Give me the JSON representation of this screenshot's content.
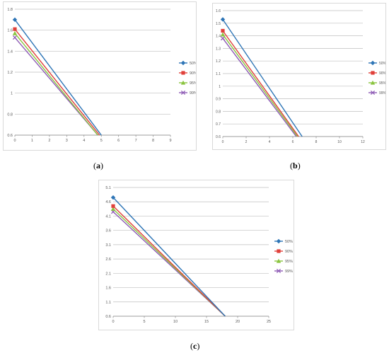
{
  "chart_data": [
    {
      "id": "a",
      "type": "line",
      "title": "",
      "xlabel": "",
      "ylabel": "",
      "xlim": [
        0,
        9
      ],
      "ylim": [
        0.6,
        1.8
      ],
      "x_ticks": [
        0,
        1,
        2,
        3,
        4,
        5,
        6,
        7,
        8,
        9
      ],
      "y_ticks": [
        0.6,
        0.8,
        1,
        1.2,
        1.4,
        1.6,
        1.8
      ],
      "grid": "horizontal",
      "legend": "right",
      "series": [
        {
          "name": "50%",
          "color": "#2e75b6",
          "marker": "diamond",
          "x": [
            0,
            5
          ],
          "y": [
            1.7,
            0.6
          ]
        },
        {
          "name": "90%",
          "color": "#e0403a",
          "marker": "square",
          "x": [
            0,
            4.9
          ],
          "y": [
            1.61,
            0.6
          ]
        },
        {
          "name": "95%",
          "color": "#8ac43f",
          "marker": "triangle",
          "x": [
            0,
            4.8
          ],
          "y": [
            1.57,
            0.6
          ]
        },
        {
          "name": "99%",
          "color": "#8e5bb5",
          "marker": "cross",
          "x": [
            0,
            4.8
          ],
          "y": [
            1.53,
            0.6
          ]
        }
      ]
    },
    {
      "id": "b",
      "type": "line",
      "title": "",
      "xlabel": "",
      "ylabel": "",
      "xlim": [
        0,
        12
      ],
      "ylim": [
        0.6,
        1.6
      ],
      "x_ticks": [
        0,
        2,
        4,
        6,
        8,
        10,
        12
      ],
      "y_ticks": [
        0.6,
        0.7,
        0.8,
        0.9,
        1,
        1.1,
        1.2,
        1.3,
        1.4,
        1.5,
        1.6
      ],
      "grid": "horizontal",
      "legend": "right",
      "series": [
        {
          "name": "50%",
          "color": "#2e75b6",
          "marker": "diamond",
          "x": [
            0,
            6.8
          ],
          "y": [
            1.53,
            0.6
          ]
        },
        {
          "name": "90%",
          "color": "#e0403a",
          "marker": "square",
          "x": [
            0,
            6.5
          ],
          "y": [
            1.44,
            0.6
          ]
        },
        {
          "name": "95%",
          "color": "#8ac43f",
          "marker": "triangle",
          "x": [
            0,
            6.4
          ],
          "y": [
            1.41,
            0.6
          ]
        },
        {
          "name": "99%",
          "color": "#8e5bb5",
          "marker": "cross",
          "x": [
            0,
            6.3
          ],
          "y": [
            1.38,
            0.6
          ]
        }
      ]
    },
    {
      "id": "c",
      "type": "line",
      "title": "",
      "xlabel": "",
      "ylabel": "",
      "xlim": [
        0,
        25
      ],
      "ylim": [
        0.6,
        5.1
      ],
      "x_ticks": [
        0,
        5,
        10,
        15,
        20,
        25
      ],
      "y_ticks": [
        0.6,
        1.1,
        1.6,
        2.1,
        2.6,
        3.1,
        3.6,
        4.1,
        4.6,
        5.1
      ],
      "grid": "horizontal",
      "legend": "right",
      "series": [
        {
          "name": "50%",
          "color": "#2e75b6",
          "marker": "diamond",
          "x": [
            0,
            18
          ],
          "y": [
            4.75,
            0.6
          ]
        },
        {
          "name": "90%",
          "color": "#e0403a",
          "marker": "square",
          "x": [
            0,
            18
          ],
          "y": [
            4.45,
            0.6
          ]
        },
        {
          "name": "95%",
          "color": "#8ac43f",
          "marker": "triangle",
          "x": [
            0,
            18
          ],
          "y": [
            4.35,
            0.6
          ]
        },
        {
          "name": "99%",
          "color": "#8e5bb5",
          "marker": "cross",
          "x": [
            0,
            18
          ],
          "y": [
            4.25,
            0.6
          ]
        }
      ]
    }
  ],
  "captions": {
    "a": "a",
    "b": "b",
    "c": "c"
  }
}
